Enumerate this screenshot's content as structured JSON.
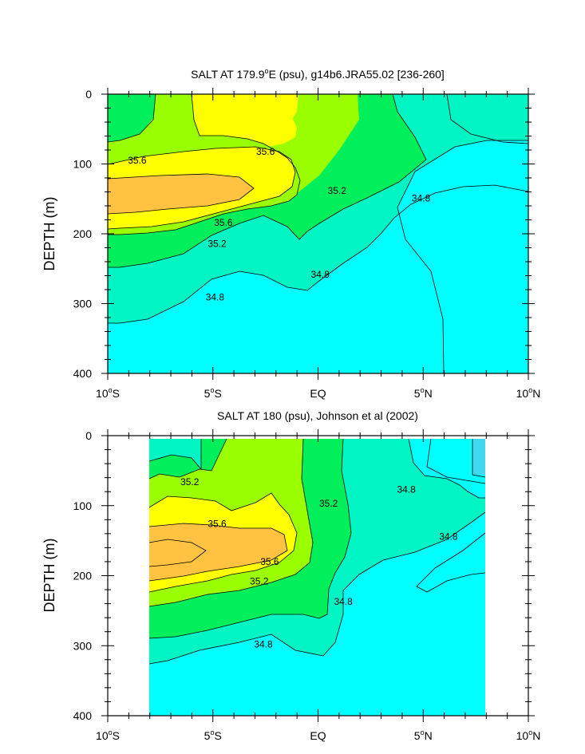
{
  "chart_data": [
    {
      "type": "heatmap",
      "title": "SALT AT 179.9°E (psu), g14b6.JRA55.02 [236-260]",
      "title_main": "SALT AT 179.9",
      "title_sup": "o",
      "title_rest": "E (psu), g14b6.JRA55.02 [236-260]",
      "ylabel": "DEPTH (m)",
      "xlim": [
        -10,
        10
      ],
      "ylim": [
        400,
        0
      ],
      "x_ticks": [
        {
          "value": -10,
          "label": "10",
          "sup": "o",
          "suffix": "S"
        },
        {
          "value": -5,
          "label": "5",
          "sup": "o",
          "suffix": "S"
        },
        {
          "value": 0,
          "label": "EQ",
          "sup": "",
          "suffix": ""
        },
        {
          "value": 5,
          "label": "5",
          "sup": "o",
          "suffix": "N"
        },
        {
          "value": 10,
          "label": "10",
          "sup": "o",
          "suffix": "N"
        }
      ],
      "y_ticks": [
        {
          "value": 0,
          "label": "0"
        },
        {
          "value": 100,
          "label": "100"
        },
        {
          "value": 200,
          "label": "200"
        },
        {
          "value": 300,
          "label": "300"
        },
        {
          "value": 400,
          "label": "400"
        }
      ],
      "contour_labels": [
        {
          "x": -8.6,
          "y": 95,
          "text": "35.6"
        },
        {
          "x": -2.5,
          "y": 82,
          "text": "35.6"
        },
        {
          "x": -4.5,
          "y": 184,
          "text": "35.6"
        },
        {
          "x": -4.8,
          "y": 214,
          "text": "35.2"
        },
        {
          "x": 0.9,
          "y": 138,
          "text": "35.2"
        },
        {
          "x": 4.9,
          "y": 149,
          "text": "34.8"
        },
        {
          "x": 0.1,
          "y": 258,
          "text": "34.8"
        },
        {
          "x": -4.9,
          "y": 291,
          "text": "34.8"
        }
      ]
    },
    {
      "type": "heatmap",
      "title": "SALT AT 180 (psu), Johnson et al (2002)",
      "ylabel": "DEPTH (m)",
      "xlim": [
        -10,
        10
      ],
      "ylim": [
        400,
        0
      ],
      "data_xrange": [
        -8,
        8
      ],
      "x_ticks": [
        {
          "value": -10,
          "label": "10",
          "sup": "o",
          "suffix": "S"
        },
        {
          "value": -5,
          "label": "5",
          "sup": "o",
          "suffix": "S"
        },
        {
          "value": 0,
          "label": "EQ",
          "sup": "",
          "suffix": ""
        },
        {
          "value": 5,
          "label": "5",
          "sup": "o",
          "suffix": "N"
        },
        {
          "value": 10,
          "label": "10",
          "sup": "o",
          "suffix": "N"
        }
      ],
      "y_ticks": [
        {
          "value": 0,
          "label": "0"
        },
        {
          "value": 100,
          "label": "100"
        },
        {
          "value": 200,
          "label": "200"
        },
        {
          "value": 300,
          "label": "300"
        },
        {
          "value": 400,
          "label": "400"
        }
      ],
      "contour_labels": [
        {
          "x": -6.1,
          "y": 66,
          "text": "35.2"
        },
        {
          "x": -4.8,
          "y": 126,
          "text": "35.6"
        },
        {
          "x": -2.3,
          "y": 180,
          "text": "35.6"
        },
        {
          "x": -2.8,
          "y": 208,
          "text": "35.2"
        },
        {
          "x": 0.5,
          "y": 97,
          "text": "35.2"
        },
        {
          "x": 4.2,
          "y": 77,
          "text": "34.8"
        },
        {
          "x": 6.2,
          "y": 144,
          "text": "34.8"
        },
        {
          "x": 1.2,
          "y": 237,
          "text": "34.8"
        },
        {
          "x": -2.6,
          "y": 298,
          "text": "34.8"
        }
      ]
    }
  ],
  "colors": {
    "s34_4": "#00ffff",
    "s34_8": "#00f5c4",
    "s35_2": "#00ef5a",
    "s35_6": "#9aff00",
    "s36_0": "#ffff00",
    "s36_4": "#ffc341",
    "s34_0": "#40d8ee"
  }
}
